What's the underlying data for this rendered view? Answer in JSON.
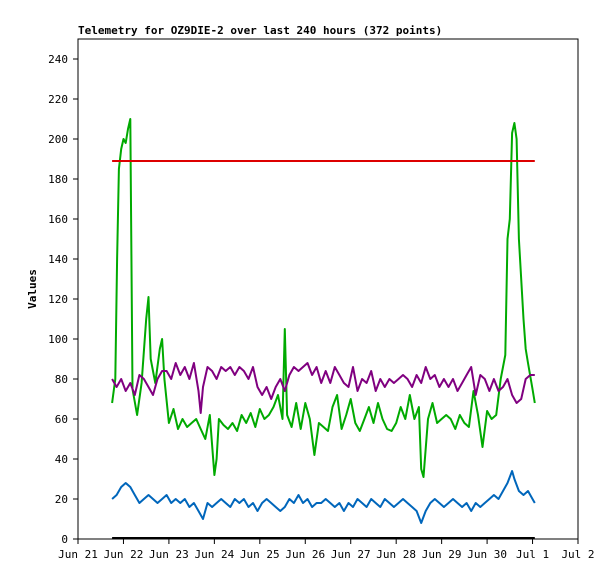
{
  "chart_data": {
    "type": "line",
    "title": "Telemetry for OZ9DIE-2 over last 240 hours (372 points)",
    "ylabel": "Values",
    "xlabel": "",
    "ylim": [
      0,
      250
    ],
    "xlim": [
      0,
      11
    ],
    "x_ticks": [
      {
        "label": "Jun 21",
        "x": 0
      },
      {
        "label": "Jun 22",
        "x": 1
      },
      {
        "label": "Jun 23",
        "x": 2
      },
      {
        "label": "Jun 24",
        "x": 3
      },
      {
        "label": "Jun 25",
        "x": 4
      },
      {
        "label": "Jun 26",
        "x": 5
      },
      {
        "label": "Jun 27",
        "x": 6
      },
      {
        "label": "Jun 28",
        "x": 7
      },
      {
        "label": "Jun 29",
        "x": 8
      },
      {
        "label": "Jun 30",
        "x": 9
      },
      {
        "label": "Jul 1",
        "x": 10
      },
      {
        "label": "Jul 2",
        "x": 11
      }
    ],
    "y_ticks": [
      0,
      20,
      40,
      60,
      80,
      100,
      120,
      140,
      160,
      180,
      200,
      220,
      240
    ],
    "grid": false,
    "series": [
      {
        "color": "#00aa00",
        "points": [
          [
            0.75,
            68
          ],
          [
            0.82,
            80
          ],
          [
            0.86,
            140
          ],
          [
            0.9,
            185
          ],
          [
            0.95,
            195
          ],
          [
            1.0,
            200
          ],
          [
            1.05,
            198
          ],
          [
            1.1,
            205
          ],
          [
            1.15,
            210
          ],
          [
            1.2,
            75
          ],
          [
            1.3,
            62
          ],
          [
            1.4,
            78
          ],
          [
            1.5,
            110
          ],
          [
            1.55,
            121
          ],
          [
            1.6,
            90
          ],
          [
            1.7,
            78
          ],
          [
            1.8,
            95
          ],
          [
            1.85,
            100
          ],
          [
            1.9,
            80
          ],
          [
            2.0,
            58
          ],
          [
            2.1,
            65
          ],
          [
            2.2,
            55
          ],
          [
            2.3,
            60
          ],
          [
            2.4,
            56
          ],
          [
            2.5,
            58
          ],
          [
            2.6,
            60
          ],
          [
            2.7,
            55
          ],
          [
            2.8,
            50
          ],
          [
            2.9,
            62
          ],
          [
            3.0,
            32
          ],
          [
            3.05,
            40
          ],
          [
            3.1,
            60
          ],
          [
            3.2,
            57
          ],
          [
            3.3,
            55
          ],
          [
            3.4,
            58
          ],
          [
            3.5,
            54
          ],
          [
            3.6,
            62
          ],
          [
            3.7,
            58
          ],
          [
            3.8,
            63
          ],
          [
            3.9,
            56
          ],
          [
            4.0,
            65
          ],
          [
            4.1,
            60
          ],
          [
            4.2,
            62
          ],
          [
            4.3,
            66
          ],
          [
            4.4,
            72
          ],
          [
            4.5,
            60
          ],
          [
            4.55,
            105
          ],
          [
            4.6,
            62
          ],
          [
            4.7,
            56
          ],
          [
            4.8,
            68
          ],
          [
            4.9,
            55
          ],
          [
            5.0,
            68
          ],
          [
            5.1,
            60
          ],
          [
            5.2,
            42
          ],
          [
            5.3,
            58
          ],
          [
            5.4,
            56
          ],
          [
            5.5,
            54
          ],
          [
            5.6,
            66
          ],
          [
            5.7,
            72
          ],
          [
            5.8,
            55
          ],
          [
            5.9,
            62
          ],
          [
            6.0,
            70
          ],
          [
            6.1,
            58
          ],
          [
            6.2,
            54
          ],
          [
            6.3,
            60
          ],
          [
            6.4,
            66
          ],
          [
            6.5,
            58
          ],
          [
            6.6,
            68
          ],
          [
            6.7,
            60
          ],
          [
            6.8,
            55
          ],
          [
            6.9,
            54
          ],
          [
            7.0,
            58
          ],
          [
            7.1,
            66
          ],
          [
            7.2,
            60
          ],
          [
            7.3,
            72
          ],
          [
            7.4,
            60
          ],
          [
            7.5,
            66
          ],
          [
            7.55,
            35
          ],
          [
            7.6,
            31
          ],
          [
            7.7,
            60
          ],
          [
            7.8,
            68
          ],
          [
            7.9,
            58
          ],
          [
            8.0,
            60
          ],
          [
            8.1,
            62
          ],
          [
            8.2,
            60
          ],
          [
            8.3,
            55
          ],
          [
            8.4,
            62
          ],
          [
            8.5,
            58
          ],
          [
            8.6,
            56
          ],
          [
            8.7,
            74
          ],
          [
            8.8,
            62
          ],
          [
            8.9,
            46
          ],
          [
            9.0,
            64
          ],
          [
            9.1,
            60
          ],
          [
            9.2,
            62
          ],
          [
            9.3,
            80
          ],
          [
            9.4,
            92
          ],
          [
            9.45,
            150
          ],
          [
            9.5,
            160
          ],
          [
            9.55,
            203
          ],
          [
            9.6,
            208
          ],
          [
            9.65,
            200
          ],
          [
            9.7,
            150
          ],
          [
            9.8,
            110
          ],
          [
            9.85,
            95
          ],
          [
            9.9,
            88
          ],
          [
            10.0,
            75
          ],
          [
            10.05,
            68
          ]
        ]
      },
      {
        "color": "#800080",
        "points": [
          [
            0.75,
            80
          ],
          [
            0.85,
            76
          ],
          [
            0.95,
            80
          ],
          [
            1.05,
            74
          ],
          [
            1.15,
            78
          ],
          [
            1.25,
            72
          ],
          [
            1.35,
            82
          ],
          [
            1.45,
            80
          ],
          [
            1.55,
            76
          ],
          [
            1.65,
            72
          ],
          [
            1.75,
            80
          ],
          [
            1.85,
            84
          ],
          [
            1.95,
            84
          ],
          [
            2.05,
            80
          ],
          [
            2.15,
            88
          ],
          [
            2.25,
            82
          ],
          [
            2.35,
            86
          ],
          [
            2.45,
            80
          ],
          [
            2.55,
            88
          ],
          [
            2.65,
            74
          ],
          [
            2.7,
            63
          ],
          [
            2.75,
            76
          ],
          [
            2.85,
            86
          ],
          [
            2.95,
            84
          ],
          [
            3.05,
            80
          ],
          [
            3.15,
            86
          ],
          [
            3.25,
            84
          ],
          [
            3.35,
            86
          ],
          [
            3.45,
            82
          ],
          [
            3.55,
            86
          ],
          [
            3.65,
            84
          ],
          [
            3.75,
            80
          ],
          [
            3.85,
            86
          ],
          [
            3.95,
            76
          ],
          [
            4.05,
            72
          ],
          [
            4.15,
            76
          ],
          [
            4.25,
            70
          ],
          [
            4.35,
            76
          ],
          [
            4.45,
            80
          ],
          [
            4.55,
            74
          ],
          [
            4.65,
            82
          ],
          [
            4.75,
            86
          ],
          [
            4.85,
            84
          ],
          [
            4.95,
            86
          ],
          [
            5.05,
            88
          ],
          [
            5.15,
            82
          ],
          [
            5.25,
            86
          ],
          [
            5.35,
            78
          ],
          [
            5.45,
            84
          ],
          [
            5.55,
            78
          ],
          [
            5.65,
            86
          ],
          [
            5.75,
            82
          ],
          [
            5.85,
            78
          ],
          [
            5.95,
            76
          ],
          [
            6.05,
            86
          ],
          [
            6.15,
            74
          ],
          [
            6.25,
            80
          ],
          [
            6.35,
            78
          ],
          [
            6.45,
            84
          ],
          [
            6.55,
            74
          ],
          [
            6.65,
            80
          ],
          [
            6.75,
            76
          ],
          [
            6.85,
            80
          ],
          [
            6.95,
            78
          ],
          [
            7.05,
            80
          ],
          [
            7.15,
            82
          ],
          [
            7.25,
            80
          ],
          [
            7.35,
            76
          ],
          [
            7.45,
            82
          ],
          [
            7.55,
            78
          ],
          [
            7.65,
            86
          ],
          [
            7.75,
            80
          ],
          [
            7.85,
            82
          ],
          [
            7.95,
            76
          ],
          [
            8.05,
            80
          ],
          [
            8.15,
            76
          ],
          [
            8.25,
            80
          ],
          [
            8.35,
            74
          ],
          [
            8.45,
            78
          ],
          [
            8.55,
            82
          ],
          [
            8.65,
            86
          ],
          [
            8.75,
            72
          ],
          [
            8.85,
            82
          ],
          [
            8.95,
            80
          ],
          [
            9.05,
            74
          ],
          [
            9.15,
            80
          ],
          [
            9.25,
            74
          ],
          [
            9.35,
            76
          ],
          [
            9.45,
            80
          ],
          [
            9.55,
            72
          ],
          [
            9.65,
            68
          ],
          [
            9.75,
            70
          ],
          [
            9.85,
            80
          ],
          [
            9.95,
            82
          ],
          [
            10.05,
            82
          ]
        ]
      },
      {
        "color": "#0066bb",
        "points": [
          [
            0.75,
            20
          ],
          [
            0.85,
            22
          ],
          [
            0.95,
            26
          ],
          [
            1.05,
            28
          ],
          [
            1.15,
            26
          ],
          [
            1.25,
            22
          ],
          [
            1.35,
            18
          ],
          [
            1.45,
            20
          ],
          [
            1.55,
            22
          ],
          [
            1.65,
            20
          ],
          [
            1.75,
            18
          ],
          [
            1.85,
            20
          ],
          [
            1.95,
            22
          ],
          [
            2.05,
            18
          ],
          [
            2.15,
            20
          ],
          [
            2.25,
            18
          ],
          [
            2.35,
            20
          ],
          [
            2.45,
            16
          ],
          [
            2.55,
            18
          ],
          [
            2.65,
            14
          ],
          [
            2.75,
            10
          ],
          [
            2.85,
            18
          ],
          [
            2.95,
            16
          ],
          [
            3.05,
            18
          ],
          [
            3.15,
            20
          ],
          [
            3.25,
            18
          ],
          [
            3.35,
            16
          ],
          [
            3.45,
            20
          ],
          [
            3.55,
            18
          ],
          [
            3.65,
            20
          ],
          [
            3.75,
            16
          ],
          [
            3.85,
            18
          ],
          [
            3.95,
            14
          ],
          [
            4.05,
            18
          ],
          [
            4.15,
            20
          ],
          [
            4.25,
            18
          ],
          [
            4.35,
            16
          ],
          [
            4.45,
            14
          ],
          [
            4.55,
            16
          ],
          [
            4.65,
            20
          ],
          [
            4.75,
            18
          ],
          [
            4.85,
            22
          ],
          [
            4.95,
            18
          ],
          [
            5.05,
            20
          ],
          [
            5.15,
            16
          ],
          [
            5.25,
            18
          ],
          [
            5.35,
            18
          ],
          [
            5.45,
            20
          ],
          [
            5.55,
            18
          ],
          [
            5.65,
            16
          ],
          [
            5.75,
            18
          ],
          [
            5.85,
            14
          ],
          [
            5.95,
            18
          ],
          [
            6.05,
            16
          ],
          [
            6.15,
            20
          ],
          [
            6.25,
            18
          ],
          [
            6.35,
            16
          ],
          [
            6.45,
            20
          ],
          [
            6.55,
            18
          ],
          [
            6.65,
            16
          ],
          [
            6.75,
            20
          ],
          [
            6.85,
            18
          ],
          [
            6.95,
            16
          ],
          [
            7.05,
            18
          ],
          [
            7.15,
            20
          ],
          [
            7.25,
            18
          ],
          [
            7.35,
            16
          ],
          [
            7.45,
            14
          ],
          [
            7.55,
            8
          ],
          [
            7.65,
            14
          ],
          [
            7.75,
            18
          ],
          [
            7.85,
            20
          ],
          [
            7.95,
            18
          ],
          [
            8.05,
            16
          ],
          [
            8.15,
            18
          ],
          [
            8.25,
            20
          ],
          [
            8.35,
            18
          ],
          [
            8.45,
            16
          ],
          [
            8.55,
            18
          ],
          [
            8.65,
            14
          ],
          [
            8.75,
            18
          ],
          [
            8.85,
            16
          ],
          [
            8.95,
            18
          ],
          [
            9.05,
            20
          ],
          [
            9.15,
            22
          ],
          [
            9.25,
            20
          ],
          [
            9.35,
            24
          ],
          [
            9.45,
            28
          ],
          [
            9.55,
            34
          ],
          [
            9.6,
            30
          ],
          [
            9.7,
            24
          ],
          [
            9.8,
            22
          ],
          [
            9.9,
            24
          ],
          [
            10.0,
            20
          ],
          [
            10.05,
            18
          ]
        ]
      },
      {
        "color": "#dd0000",
        "points": [
          [
            0.75,
            189
          ],
          [
            10.05,
            189
          ]
        ]
      },
      {
        "color": "#000000",
        "points": [
          [
            0.75,
            0.5
          ],
          [
            10.05,
            0.5
          ]
        ]
      }
    ]
  }
}
